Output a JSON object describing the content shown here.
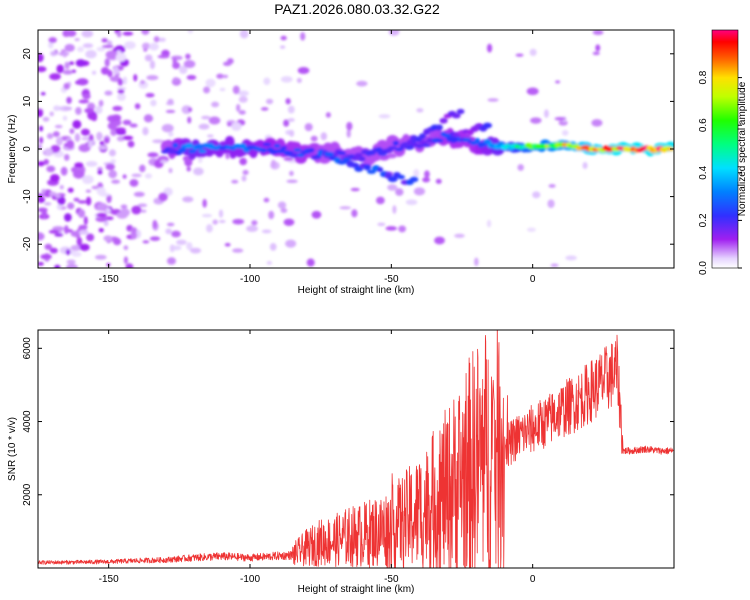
{
  "title": "PAZ1.2026.080.03.32.G22",
  "chart_data": [
    {
      "type": "heatmap",
      "xlabel": "Height of straight line (km)",
      "ylabel": "Frequency (Hz)",
      "xlim": [
        -175,
        50
      ],
      "ylim": [
        -25,
        25
      ],
      "xticks": [
        -150,
        -100,
        -50,
        0
      ],
      "xtick_labels": [
        "-150",
        "-100",
        "-50",
        "0"
      ],
      "yticks": [
        -20,
        -10,
        0,
        10,
        20
      ],
      "ytick_labels": [
        "-20",
        "-10",
        "0",
        "10",
        "20"
      ],
      "colorbar": {
        "label": "Normalized spectral amplitude",
        "range": [
          0,
          1
        ],
        "ticks": [
          0.0,
          0.2,
          0.4,
          0.6,
          0.8
        ],
        "tick_labels": [
          "0.0",
          "0.2",
          "0.4",
          "0.6",
          "0.8"
        ]
      },
      "ridge": [
        {
          "x": -130,
          "f": 0.0,
          "amp": 0.2
        },
        {
          "x": -120,
          "f": 0.0,
          "amp": 0.35
        },
        {
          "x": -110,
          "f": 0.5,
          "amp": 0.3
        },
        {
          "x": -100,
          "f": 0.5,
          "amp": 0.3
        },
        {
          "x": -90,
          "f": 0.0,
          "amp": 0.25
        },
        {
          "x": -80,
          "f": -1.0,
          "amp": 0.25
        },
        {
          "x": -70,
          "f": -1.0,
          "amp": 0.2
        },
        {
          "x": -60,
          "f": -1.5,
          "amp": 0.2
        },
        {
          "x": -50,
          "f": 0.5,
          "amp": 0.2
        },
        {
          "x": -40,
          "f": 1.0,
          "amp": 0.2
        },
        {
          "x": -30,
          "f": 3.0,
          "amp": 0.25
        },
        {
          "x": -20,
          "f": 1.0,
          "amp": 0.25
        },
        {
          "x": -10,
          "f": 0.5,
          "amp": 0.4
        },
        {
          "x": 0,
          "f": 0.5,
          "amp": 0.65
        },
        {
          "x": 10,
          "f": 1.0,
          "amp": 0.75
        },
        {
          "x": 20,
          "f": 0.0,
          "amp": 0.9
        },
        {
          "x": 30,
          "f": 0.0,
          "amp": 0.95
        },
        {
          "x": 40,
          "f": 0.0,
          "amp": 0.95
        },
        {
          "x": 50,
          "f": 0.0,
          "amp": 0.95
        }
      ]
    },
    {
      "type": "line",
      "xlabel": "Height of straight line (km)",
      "ylabel": "SNR (10 * v/v)",
      "xlim": [
        -175,
        50
      ],
      "ylim": [
        0,
        6500
      ],
      "xticks": [
        -150,
        -100,
        -50,
        0
      ],
      "xtick_labels": [
        "-150",
        "-100",
        "-50",
        "0"
      ],
      "yticks": [
        2000,
        4000,
        6000
      ],
      "ytick_labels": [
        "2000",
        "4000",
        "6000"
      ],
      "color": "#ee3333",
      "series": [
        {
          "name": "SNR",
          "x": [
            -175,
            -160,
            -150,
            -140,
            -130,
            -120,
            -110,
            -100,
            -90,
            -85,
            -80,
            -75,
            -70,
            -65,
            -60,
            -55,
            -50,
            -45,
            -40,
            -35,
            -30,
            -25,
            -20,
            -15,
            -10,
            -8,
            -5,
            0,
            5,
            10,
            15,
            20,
            25,
            30,
            32,
            35,
            40,
            45,
            50
          ],
          "y": [
            150,
            160,
            170,
            200,
            220,
            280,
            320,
            280,
            330,
            350,
            550,
            700,
            750,
            850,
            900,
            1000,
            1100,
            1300,
            1500,
            1800,
            2100,
            2500,
            2900,
            3100,
            3300,
            3400,
            3600,
            3800,
            4000,
            4300,
            4500,
            4800,
            5100,
            5400,
            3200,
            3200,
            3250,
            3200,
            3200
          ]
        }
      ]
    }
  ]
}
